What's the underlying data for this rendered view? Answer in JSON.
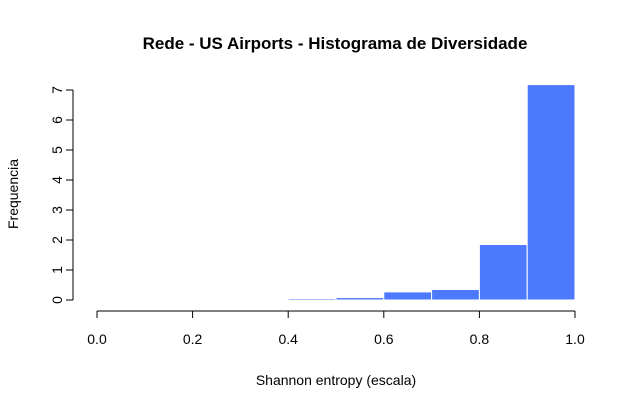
{
  "chart_data": {
    "type": "bar",
    "title": "Rede - US Airports - Histograma de Diversidade",
    "xlabel": "Shannon entropy (escala)",
    "ylabel": "Frequencia",
    "bins": [
      {
        "from": 0.4,
        "to": 0.5,
        "value": 0.05
      },
      {
        "from": 0.5,
        "to": 0.6,
        "value": 0.08
      },
      {
        "from": 0.6,
        "to": 0.7,
        "value": 0.27
      },
      {
        "from": 0.7,
        "to": 0.8,
        "value": 0.35
      },
      {
        "from": 0.8,
        "to": 0.9,
        "value": 1.85
      },
      {
        "from": 0.9,
        "to": 1.0,
        "value": 7.18
      }
    ],
    "xlim": [
      0,
      1
    ],
    "ylim": [
      0,
      7.2
    ],
    "x_ticks": [
      "0.0",
      "0.2",
      "0.4",
      "0.6",
      "0.8",
      "1.0"
    ],
    "y_ticks": [
      "0",
      "1",
      "2",
      "3",
      "4",
      "5",
      "6",
      "7"
    ],
    "bar_color": "#4D79FF",
    "grid": false
  }
}
